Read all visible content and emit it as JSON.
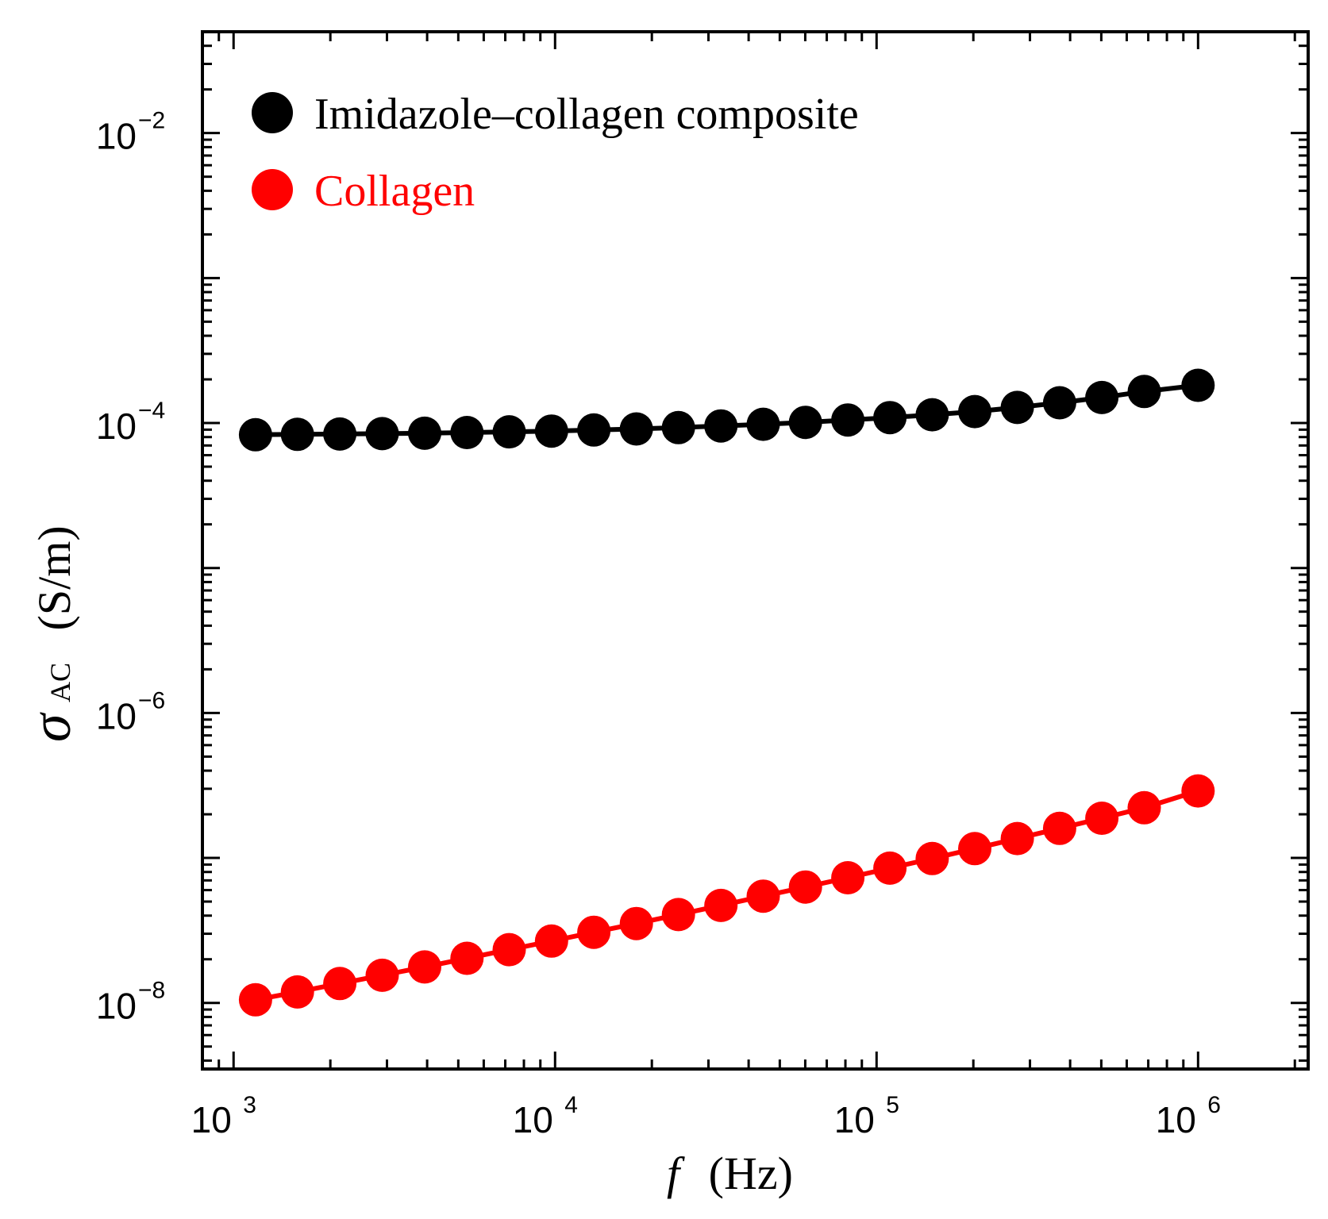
{
  "chart_data": {
    "type": "scatter",
    "title": "",
    "xscale": "log",
    "yscale": "log",
    "xlim": [
      800,
      2200000
    ],
    "ylim": [
      3.5e-09,
      0.05
    ],
    "xlabel": {
      "var": "f",
      "unit": "(Hz)"
    },
    "ylabel": {
      "symbol": "σ",
      "sub": "AC",
      "unit": "(S/m)"
    },
    "x_ticks": [
      {
        "base": "10",
        "exp": "3",
        "value": 1000
      },
      {
        "base": "10",
        "exp": "4",
        "value": 10000
      },
      {
        "base": "10",
        "exp": "5",
        "value": 100000
      },
      {
        "base": "10",
        "exp": "6",
        "value": 1000000
      }
    ],
    "y_ticks": [
      {
        "base": "10",
        "exp": "−8",
        "value": 1e-08
      },
      {
        "base": "10",
        "exp": "−6",
        "value": 1e-06
      },
      {
        "base": "10",
        "exp": "−4",
        "value": 0.0001
      },
      {
        "base": "10",
        "exp": "−2",
        "value": 0.01
      }
    ],
    "legend_position": "top-left",
    "x": [
      1170,
      1580,
      2140,
      2900,
      3930,
      5320,
      7200,
      9750,
      13200,
      17900,
      24200,
      32800,
      44400,
      60100,
      81400,
      110000,
      149000,
      202000,
      274000,
      371000,
      502000,
      680000,
      1000000
    ],
    "series": [
      {
        "name": "Imidazole–collagen composite",
        "color": "#000000",
        "values": [
          8.3e-05,
          8.35e-05,
          8.4e-05,
          8.45e-05,
          8.5e-05,
          8.6e-05,
          8.7e-05,
          8.8e-05,
          8.95e-05,
          9.1e-05,
          9.3e-05,
          9.55e-05,
          9.8e-05,
          0.000101,
          0.000105,
          0.000109,
          0.000114,
          0.00012,
          0.000128,
          0.000138,
          0.00015,
          0.000165,
          0.000182
        ]
      },
      {
        "name": "Collagen",
        "color": "#ff0000",
        "values": [
          1.05e-08,
          1.19e-08,
          1.36e-08,
          1.55e-08,
          1.77e-08,
          2.03e-08,
          2.33e-08,
          2.67e-08,
          3.07e-08,
          3.53e-08,
          4.07e-08,
          4.7e-08,
          5.45e-08,
          6.3e-08,
          7.3e-08,
          8.5e-08,
          9.9e-08,
          1.16e-07,
          1.36e-07,
          1.6e-07,
          1.88e-07,
          2.22e-07,
          2.9e-07
        ]
      }
    ]
  }
}
